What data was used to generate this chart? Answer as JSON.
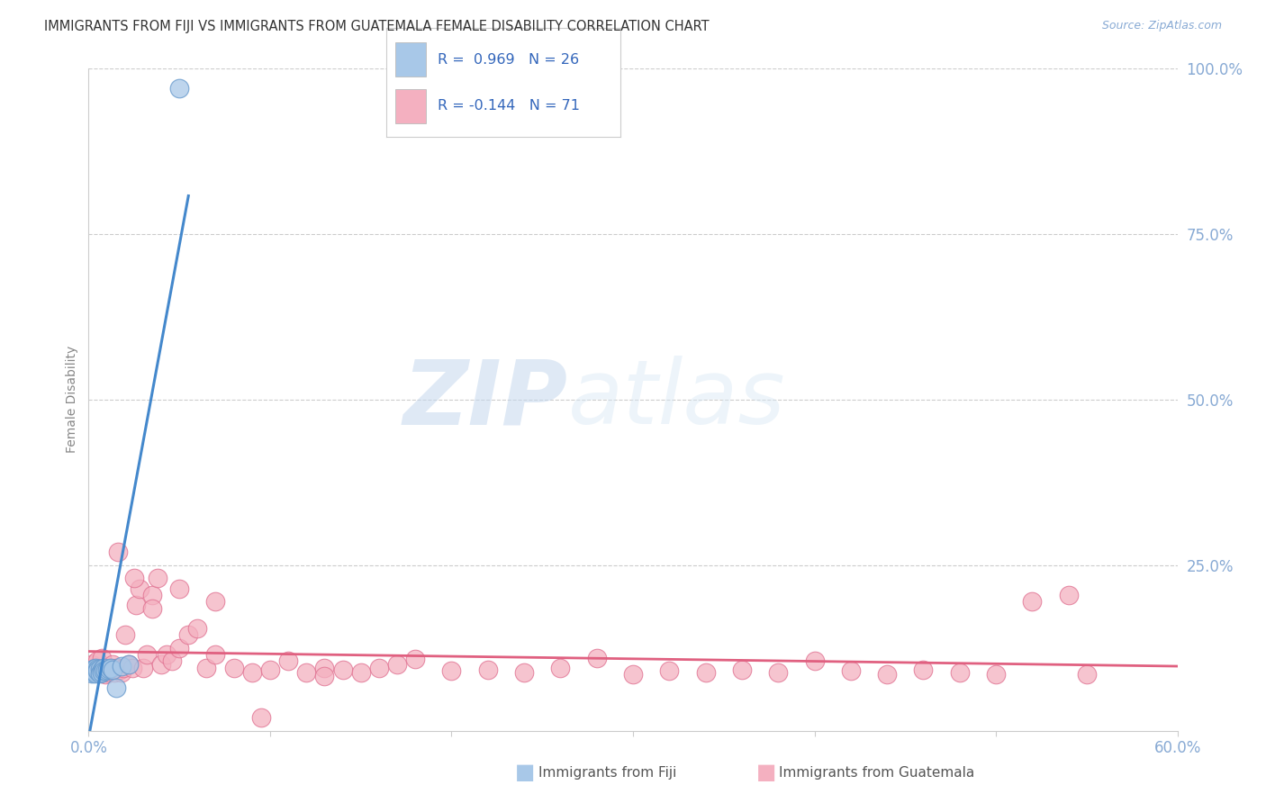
{
  "title": "IMMIGRANTS FROM FIJI VS IMMIGRANTS FROM GUATEMALA FEMALE DISABILITY CORRELATION CHART",
  "source": "Source: ZipAtlas.com",
  "ylabel": "Female Disability",
  "xlim": [
    0.0,
    0.6
  ],
  "ylim": [
    0.0,
    1.0
  ],
  "fiji_color": "#a8c8e8",
  "fiji_edge_color": "#6699cc",
  "guatemala_color": "#f4b0c0",
  "guatemala_edge_color": "#e07090",
  "regression_fiji_color": "#4488cc",
  "regression_guatemala_color": "#e06080",
  "fiji_R": 0.969,
  "fiji_N": 26,
  "guatemala_R": -0.144,
  "guatemala_N": 71,
  "watermark_zip": "ZIP",
  "watermark_atlas": "atlas",
  "background_color": "#ffffff",
  "grid_color": "#cccccc",
  "title_color": "#333333",
  "axis_label_color": "#888888",
  "tick_label_color": "#88aad4",
  "source_color": "#88aad4",
  "legend_text_color": "#3366bb",
  "legend_box_fiji": "#a8c8e8",
  "legend_box_guatemala": "#f4b0c0",
  "fiji_x": [
    0.001,
    0.002,
    0.002,
    0.002,
    0.003,
    0.003,
    0.003,
    0.004,
    0.004,
    0.005,
    0.005,
    0.006,
    0.006,
    0.007,
    0.007,
    0.008,
    0.008,
    0.009,
    0.01,
    0.011,
    0.012,
    0.013,
    0.015,
    0.018,
    0.022,
    0.05
  ],
  "fiji_y": [
    0.09,
    0.092,
    0.088,
    0.086,
    0.093,
    0.089,
    0.091,
    0.095,
    0.087,
    0.094,
    0.09,
    0.093,
    0.087,
    0.092,
    0.088,
    0.095,
    0.091,
    0.09,
    0.092,
    0.093,
    0.095,
    0.092,
    0.065,
    0.098,
    0.1,
    0.97
  ],
  "guat_x": [
    0.002,
    0.003,
    0.004,
    0.005,
    0.006,
    0.007,
    0.008,
    0.009,
    0.01,
    0.011,
    0.012,
    0.013,
    0.014,
    0.015,
    0.016,
    0.017,
    0.018,
    0.019,
    0.02,
    0.022,
    0.024,
    0.026,
    0.028,
    0.03,
    0.032,
    0.035,
    0.038,
    0.04,
    0.043,
    0.046,
    0.05,
    0.055,
    0.06,
    0.065,
    0.07,
    0.08,
    0.09,
    0.1,
    0.11,
    0.12,
    0.13,
    0.14,
    0.15,
    0.16,
    0.17,
    0.18,
    0.2,
    0.22,
    0.24,
    0.26,
    0.28,
    0.3,
    0.32,
    0.34,
    0.36,
    0.38,
    0.4,
    0.42,
    0.44,
    0.46,
    0.48,
    0.5,
    0.52,
    0.54,
    0.55,
    0.025,
    0.035,
    0.05,
    0.07,
    0.095,
    0.13
  ],
  "guat_y": [
    0.1,
    0.095,
    0.09,
    0.105,
    0.088,
    0.11,
    0.092,
    0.085,
    0.088,
    0.095,
    0.092,
    0.1,
    0.088,
    0.095,
    0.27,
    0.092,
    0.088,
    0.095,
    0.145,
    0.1,
    0.095,
    0.19,
    0.215,
    0.095,
    0.115,
    0.205,
    0.23,
    0.1,
    0.115,
    0.105,
    0.125,
    0.145,
    0.155,
    0.095,
    0.115,
    0.095,
    0.088,
    0.092,
    0.105,
    0.088,
    0.095,
    0.092,
    0.088,
    0.095,
    0.1,
    0.108,
    0.09,
    0.092,
    0.088,
    0.095,
    0.11,
    0.085,
    0.09,
    0.088,
    0.092,
    0.088,
    0.105,
    0.09,
    0.085,
    0.092,
    0.088,
    0.085,
    0.195,
    0.205,
    0.085,
    0.23,
    0.185,
    0.215,
    0.195,
    0.02,
    0.082
  ]
}
